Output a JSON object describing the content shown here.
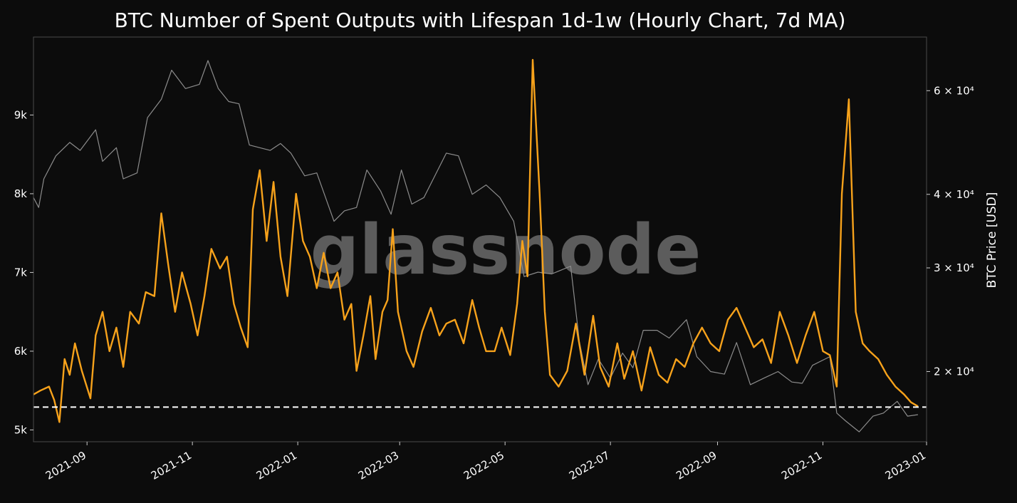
{
  "chart_data": {
    "type": "line",
    "title": "BTC Number of Spent Outputs with Lifespan 1d-1w (Hourly Chart, 7d MA)",
    "watermark": "glassnode",
    "y_left": {
      "ticks": [
        5000,
        6000,
        7000,
        8000,
        9000
      ],
      "tick_labels": [
        "5k",
        "6k",
        "7k",
        "8k",
        "9k"
      ],
      "range": [
        4850,
        9990
      ]
    },
    "y_right": {
      "label": "BTC Price [USD]",
      "scale": "log",
      "ticks": [
        20000,
        30000,
        40000,
        60000
      ],
      "tick_labels": [
        "2 × 10⁴",
        "3 × 10⁴",
        "4 × 10⁴",
        "6 × 10⁴"
      ],
      "range": [
        15200,
        74000
      ]
    },
    "x_axis": {
      "range": [
        "2021-08-01",
        "2022-12-31"
      ],
      "ticks": [
        "2021-09-01",
        "2021-11-01",
        "2022-01-01",
        "2022-03-01",
        "2022-05-01",
        "2022-07-01",
        "2022-09-01",
        "2022-11-01",
        "2023-01-01"
      ],
      "tick_labels": [
        "2021-09",
        "2021-11",
        "2022-01",
        "2022-03",
        "2022-05",
        "2022-07",
        "2022-09",
        "2022-11",
        "2023-01"
      ]
    },
    "reference_line": {
      "value": 5290,
      "style": "dashed",
      "color": "#ffffff"
    },
    "series": [
      {
        "color": "#f7a21b",
        "axis": "left",
        "points": [
          [
            "2021-08-01",
            5450
          ],
          [
            "2021-08-05",
            5500
          ],
          [
            "2021-08-10",
            5550
          ],
          [
            "2021-08-13",
            5380
          ],
          [
            "2021-08-16",
            5100
          ],
          [
            "2021-08-19",
            5900
          ],
          [
            "2021-08-22",
            5700
          ],
          [
            "2021-08-25",
            6100
          ],
          [
            "2021-08-29",
            5750
          ],
          [
            "2021-09-03",
            5400
          ],
          [
            "2021-09-06",
            6200
          ],
          [
            "2021-09-10",
            6500
          ],
          [
            "2021-09-14",
            6000
          ],
          [
            "2021-09-18",
            6300
          ],
          [
            "2021-09-22",
            5800
          ],
          [
            "2021-09-26",
            6500
          ],
          [
            "2021-10-01",
            6350
          ],
          [
            "2021-10-05",
            6750
          ],
          [
            "2021-10-10",
            6700
          ],
          [
            "2021-10-14",
            7750
          ],
          [
            "2021-10-18",
            7100
          ],
          [
            "2021-10-22",
            6500
          ],
          [
            "2021-10-26",
            7000
          ],
          [
            "2021-10-31",
            6600
          ],
          [
            "2021-11-04",
            6200
          ],
          [
            "2021-11-08",
            6700
          ],
          [
            "2021-11-12",
            7300
          ],
          [
            "2021-11-17",
            7050
          ],
          [
            "2021-11-21",
            7200
          ],
          [
            "2021-11-25",
            6600
          ],
          [
            "2021-11-29",
            6300
          ],
          [
            "2021-12-03",
            6050
          ],
          [
            "2021-12-06",
            7800
          ],
          [
            "2021-12-10",
            8300
          ],
          [
            "2021-12-14",
            7400
          ],
          [
            "2021-12-18",
            8150
          ],
          [
            "2021-12-22",
            7200
          ],
          [
            "2021-12-26",
            6700
          ],
          [
            "2021-12-31",
            8000
          ],
          [
            "2022-01-04",
            7400
          ],
          [
            "2022-01-08",
            7200
          ],
          [
            "2022-01-12",
            6800
          ],
          [
            "2022-01-16",
            7250
          ],
          [
            "2022-01-20",
            6800
          ],
          [
            "2022-01-24",
            7000
          ],
          [
            "2022-01-28",
            6400
          ],
          [
            "2022-02-01",
            6600
          ],
          [
            "2022-02-04",
            5750
          ],
          [
            "2022-02-08",
            6200
          ],
          [
            "2022-02-12",
            6700
          ],
          [
            "2022-02-15",
            5900
          ],
          [
            "2022-02-19",
            6500
          ],
          [
            "2022-02-22",
            6650
          ],
          [
            "2022-02-25",
            7550
          ],
          [
            "2022-02-28",
            6500
          ],
          [
            "2022-03-05",
            6000
          ],
          [
            "2022-03-09",
            5800
          ],
          [
            "2022-03-14",
            6250
          ],
          [
            "2022-03-19",
            6550
          ],
          [
            "2022-03-24",
            6200
          ],
          [
            "2022-03-28",
            6350
          ],
          [
            "2022-04-02",
            6400
          ],
          [
            "2022-04-07",
            6100
          ],
          [
            "2022-04-12",
            6650
          ],
          [
            "2022-04-16",
            6300
          ],
          [
            "2022-04-20",
            6000
          ],
          [
            "2022-04-25",
            6000
          ],
          [
            "2022-04-29",
            6300
          ],
          [
            "2022-05-04",
            5950
          ],
          [
            "2022-05-08",
            6600
          ],
          [
            "2022-05-11",
            7400
          ],
          [
            "2022-05-14",
            6950
          ],
          [
            "2022-05-17",
            9700
          ],
          [
            "2022-05-21",
            8000
          ],
          [
            "2022-05-24",
            6500
          ],
          [
            "2022-05-27",
            5700
          ],
          [
            "2022-06-01",
            5550
          ],
          [
            "2022-06-06",
            5750
          ],
          [
            "2022-06-11",
            6350
          ],
          [
            "2022-06-16",
            5700
          ],
          [
            "2022-06-21",
            6450
          ],
          [
            "2022-06-25",
            5800
          ],
          [
            "2022-06-30",
            5550
          ],
          [
            "2022-07-05",
            6100
          ],
          [
            "2022-07-09",
            5650
          ],
          [
            "2022-07-14",
            6000
          ],
          [
            "2022-07-19",
            5500
          ],
          [
            "2022-07-24",
            6050
          ],
          [
            "2022-07-29",
            5700
          ],
          [
            "2022-08-03",
            5600
          ],
          [
            "2022-08-08",
            5900
          ],
          [
            "2022-08-13",
            5800
          ],
          [
            "2022-08-18",
            6100
          ],
          [
            "2022-08-23",
            6300
          ],
          [
            "2022-08-28",
            6100
          ],
          [
            "2022-09-02",
            6000
          ],
          [
            "2022-09-07",
            6400
          ],
          [
            "2022-09-12",
            6550
          ],
          [
            "2022-09-17",
            6300
          ],
          [
            "2022-09-22",
            6050
          ],
          [
            "2022-09-27",
            6150
          ],
          [
            "2022-10-02",
            5850
          ],
          [
            "2022-10-07",
            6500
          ],
          [
            "2022-10-12",
            6200
          ],
          [
            "2022-10-17",
            5850
          ],
          [
            "2022-10-22",
            6200
          ],
          [
            "2022-10-27",
            6500
          ],
          [
            "2022-11-01",
            6000
          ],
          [
            "2022-11-05",
            5950
          ],
          [
            "2022-11-09",
            5550
          ],
          [
            "2022-11-12",
            8000
          ],
          [
            "2022-11-16",
            9200
          ],
          [
            "2022-11-20",
            6500
          ],
          [
            "2022-11-24",
            6100
          ],
          [
            "2022-11-28",
            6000
          ],
          [
            "2022-12-03",
            5900
          ],
          [
            "2022-12-08",
            5700
          ],
          [
            "2022-12-13",
            5550
          ],
          [
            "2022-12-18",
            5450
          ],
          [
            "2022-12-22",
            5350
          ],
          [
            "2022-12-26",
            5300
          ]
        ]
      },
      {
        "color": "#8c8c8c",
        "axis": "right",
        "points": [
          [
            "2021-08-01",
            39500
          ],
          [
            "2021-08-04",
            38000
          ],
          [
            "2021-08-07",
            42500
          ],
          [
            "2021-08-14",
            46500
          ],
          [
            "2021-08-22",
            49000
          ],
          [
            "2021-08-28",
            47500
          ],
          [
            "2021-09-06",
            51500
          ],
          [
            "2021-09-10",
            45500
          ],
          [
            "2021-09-18",
            48000
          ],
          [
            "2021-09-22",
            42500
          ],
          [
            "2021-09-30",
            43500
          ],
          [
            "2021-10-06",
            54000
          ],
          [
            "2021-10-14",
            58000
          ],
          [
            "2021-10-20",
            65000
          ],
          [
            "2021-10-28",
            60500
          ],
          [
            "2021-11-05",
            61500
          ],
          [
            "2021-11-10",
            67500
          ],
          [
            "2021-11-16",
            60500
          ],
          [
            "2021-11-22",
            57500
          ],
          [
            "2021-11-28",
            57000
          ],
          [
            "2021-12-04",
            48500
          ],
          [
            "2021-12-10",
            48000
          ],
          [
            "2021-12-16",
            47500
          ],
          [
            "2021-12-22",
            48800
          ],
          [
            "2021-12-28",
            47000
          ],
          [
            "2022-01-05",
            43000
          ],
          [
            "2022-01-12",
            43500
          ],
          [
            "2022-01-22",
            36000
          ],
          [
            "2022-01-28",
            37500
          ],
          [
            "2022-02-04",
            38000
          ],
          [
            "2022-02-10",
            44000
          ],
          [
            "2022-02-18",
            40500
          ],
          [
            "2022-02-24",
            37000
          ],
          [
            "2022-03-02",
            44000
          ],
          [
            "2022-03-08",
            38500
          ],
          [
            "2022-03-15",
            39500
          ],
          [
            "2022-03-28",
            47000
          ],
          [
            "2022-04-04",
            46500
          ],
          [
            "2022-04-12",
            40000
          ],
          [
            "2022-04-20",
            41500
          ],
          [
            "2022-04-28",
            39500
          ],
          [
            "2022-05-06",
            36000
          ],
          [
            "2022-05-12",
            29000
          ],
          [
            "2022-05-20",
            29500
          ],
          [
            "2022-05-28",
            29300
          ],
          [
            "2022-06-08",
            30200
          ],
          [
            "2022-06-13",
            22500
          ],
          [
            "2022-06-18",
            19000
          ],
          [
            "2022-06-24",
            21000
          ],
          [
            "2022-07-01",
            19500
          ],
          [
            "2022-07-08",
            21500
          ],
          [
            "2022-07-14",
            20300
          ],
          [
            "2022-07-20",
            23500
          ],
          [
            "2022-07-28",
            23500
          ],
          [
            "2022-08-04",
            22800
          ],
          [
            "2022-08-14",
            24500
          ],
          [
            "2022-08-20",
            21200
          ],
          [
            "2022-08-28",
            20000
          ],
          [
            "2022-09-05",
            19800
          ],
          [
            "2022-09-12",
            22400
          ],
          [
            "2022-09-20",
            19000
          ],
          [
            "2022-09-28",
            19500
          ],
          [
            "2022-10-06",
            20000
          ],
          [
            "2022-10-14",
            19200
          ],
          [
            "2022-10-20",
            19100
          ],
          [
            "2022-10-26",
            20500
          ],
          [
            "2022-11-05",
            21200
          ],
          [
            "2022-11-09",
            17000
          ],
          [
            "2022-11-14",
            16500
          ],
          [
            "2022-11-22",
            15800
          ],
          [
            "2022-11-30",
            16800
          ],
          [
            "2022-12-06",
            17000
          ],
          [
            "2022-12-14",
            17800
          ],
          [
            "2022-12-20",
            16800
          ],
          [
            "2022-12-26",
            16900
          ]
        ]
      }
    ]
  }
}
